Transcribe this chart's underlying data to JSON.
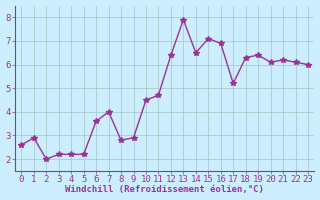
{
  "x": [
    0,
    1,
    2,
    3,
    4,
    5,
    6,
    7,
    8,
    9,
    10,
    11,
    12,
    13,
    14,
    15,
    16,
    17,
    18,
    19,
    20,
    21,
    22,
    23
  ],
  "y": [
    2.6,
    2.9,
    2.0,
    2.2,
    2.2,
    2.2,
    3.6,
    4.0,
    2.8,
    2.9,
    4.5,
    4.7,
    6.4,
    7.9,
    6.5,
    7.1,
    6.9,
    5.2,
    6.3,
    6.4,
    6.1,
    6.2,
    6.1,
    6.0
  ],
  "line_color": "#993399",
  "marker": "*",
  "marker_size": 4,
  "xlabel": "Windchill (Refroidissement éolien,°C)",
  "xlabel_fontsize": 6.5,
  "ylabel_ticks": [
    2,
    3,
    4,
    5,
    6,
    7,
    8
  ],
  "xlim": [
    -0.5,
    23.5
  ],
  "ylim": [
    1.5,
    8.5
  ],
  "bg_color": "#cceeff",
  "grid_color": "#aacccc",
  "tick_label_fontsize": 6.5,
  "line_width": 1.0,
  "spine_color": "#993399",
  "xlabel_color": "#993399",
  "tick_color": "#993399"
}
